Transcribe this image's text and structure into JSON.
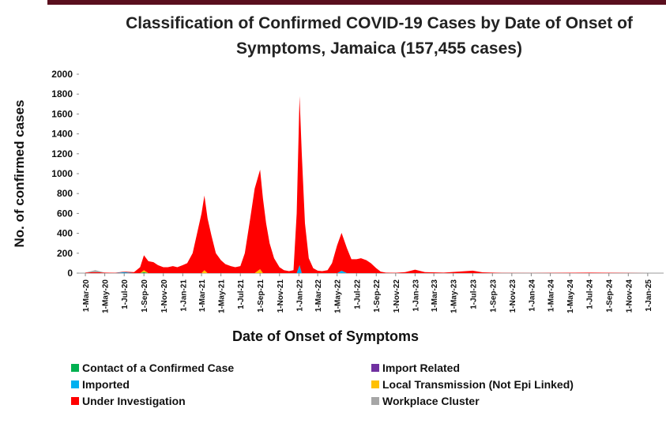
{
  "chart_data": {
    "type": "stacked-area",
    "title": "Classification of Confirmed COVID-19 Cases by Date of Onset of Symptoms, Jamaica (157,455 cases)",
    "xlabel": "Date of  Onset of Symptoms",
    "ylabel": "No. of confirmed cases",
    "x": [
      "2020-03-01",
      "2020-04-01",
      "2020-05-01",
      "2020-06-01",
      "2020-07-01",
      "2020-08-01",
      "2020-08-20",
      "2020-09-01",
      "2020-09-15",
      "2020-10-01",
      "2020-10-15",
      "2020-11-01",
      "2020-11-15",
      "2020-12-01",
      "2020-12-15",
      "2021-01-01",
      "2021-01-15",
      "2021-02-01",
      "2021-02-15",
      "2021-03-01",
      "2021-03-10",
      "2021-03-20",
      "2021-04-01",
      "2021-04-15",
      "2021-05-01",
      "2021-05-15",
      "2021-06-01",
      "2021-06-15",
      "2021-07-01",
      "2021-07-15",
      "2021-08-01",
      "2021-08-15",
      "2021-09-01",
      "2021-09-10",
      "2021-09-20",
      "2021-10-01",
      "2021-10-15",
      "2021-11-01",
      "2021-11-15",
      "2021-12-01",
      "2021-12-15",
      "2021-12-25",
      "2022-01-03",
      "2022-01-10",
      "2022-01-20",
      "2022-02-01",
      "2022-02-15",
      "2022-03-01",
      "2022-03-15",
      "2022-04-01",
      "2022-04-15",
      "2022-05-01",
      "2022-05-15",
      "2022-06-01",
      "2022-06-15",
      "2022-07-01",
      "2022-07-15",
      "2022-08-01",
      "2022-08-15",
      "2022-09-01",
      "2022-09-15",
      "2022-10-01",
      "2022-11-01",
      "2022-12-01",
      "2023-01-01",
      "2023-02-01",
      "2023-04-01",
      "2023-07-01",
      "2023-08-01",
      "2023-10-01",
      "2024-01-01",
      "2024-07-01",
      "2025-01-01"
    ],
    "xlim": [
      "2020-02-10",
      "2025-02-20"
    ],
    "xticks": [
      {
        "value": "2020-03-01",
        "label": "1-Mar-20"
      },
      {
        "value": "2020-05-01",
        "label": "1-May-20"
      },
      {
        "value": "2020-07-01",
        "label": "1-Jul-20"
      },
      {
        "value": "2020-09-01",
        "label": "1-Sep-20"
      },
      {
        "value": "2020-11-01",
        "label": "1-Nov-20"
      },
      {
        "value": "2021-01-01",
        "label": "1-Jan-21"
      },
      {
        "value": "2021-03-01",
        "label": "1-Mar-21"
      },
      {
        "value": "2021-05-01",
        "label": "1-May-21"
      },
      {
        "value": "2021-07-01",
        "label": "1-Jul-21"
      },
      {
        "value": "2021-09-01",
        "label": "1-Sep-21"
      },
      {
        "value": "2021-11-01",
        "label": "1-Nov-21"
      },
      {
        "value": "2022-01-01",
        "label": "1-Jan-22"
      },
      {
        "value": "2022-03-01",
        "label": "1-Mar-22"
      },
      {
        "value": "2022-05-01",
        "label": "1-May-22"
      },
      {
        "value": "2022-07-01",
        "label": "1-Jul-22"
      },
      {
        "value": "2022-09-01",
        "label": "1-Sep-22"
      },
      {
        "value": "2022-11-01",
        "label": "1-Nov-22"
      },
      {
        "value": "2023-01-01",
        "label": "1-Jan-23"
      },
      {
        "value": "2023-03-01",
        "label": "1-Mar-23"
      },
      {
        "value": "2023-05-01",
        "label": "1-May-23"
      },
      {
        "value": "2023-07-01",
        "label": "1-Jul-23"
      },
      {
        "value": "2023-09-01",
        "label": "1-Sep-23"
      },
      {
        "value": "2023-11-01",
        "label": "1-Nov-23"
      },
      {
        "value": "2024-01-01",
        "label": "1-Jan-24"
      },
      {
        "value": "2024-03-01",
        "label": "1-Mar-24"
      },
      {
        "value": "2024-05-01",
        "label": "1-May-24"
      },
      {
        "value": "2024-07-01",
        "label": "1-Jul-24"
      },
      {
        "value": "2024-09-01",
        "label": "1-Sep-24"
      },
      {
        "value": "2024-11-01",
        "label": "1-Nov-24"
      },
      {
        "value": "2025-01-01",
        "label": "1-Jan-25"
      }
    ],
    "ylim": [
      0,
      2000
    ],
    "yticks": [
      0,
      200,
      400,
      600,
      800,
      1000,
      1200,
      1400,
      1600,
      1800,
      2000
    ],
    "legend": "bottom",
    "series": [
      {
        "name": "Contact of a Confirmed Case",
        "color": "#00b050",
        "values": [
          0,
          0,
          0,
          0,
          0,
          0,
          0,
          10,
          0,
          0,
          0,
          0,
          0,
          0,
          0,
          0,
          0,
          0,
          0,
          0,
          0,
          0,
          0,
          0,
          0,
          0,
          0,
          0,
          0,
          0,
          0,
          0,
          0,
          0,
          0,
          0,
          0,
          0,
          0,
          0,
          0,
          0,
          0,
          0,
          0,
          0,
          0,
          0,
          0,
          0,
          0,
          0,
          0,
          0,
          0,
          0,
          0,
          0,
          0,
          0,
          0,
          0,
          0,
          0,
          0,
          0,
          0,
          0,
          0,
          0,
          0,
          0,
          0
        ]
      },
      {
        "name": "Import Related",
        "color": "#7030a0",
        "values": [
          0,
          0,
          0,
          0,
          0,
          0,
          0,
          0,
          0,
          0,
          0,
          0,
          0,
          0,
          0,
          0,
          0,
          0,
          0,
          0,
          0,
          0,
          0,
          0,
          0,
          0,
          0,
          0,
          0,
          0,
          0,
          0,
          0,
          0,
          0,
          0,
          0,
          0,
          0,
          0,
          0,
          0,
          0,
          0,
          0,
          0,
          0,
          0,
          0,
          0,
          0,
          0,
          0,
          0,
          0,
          0,
          0,
          0,
          0,
          0,
          0,
          0,
          0,
          0,
          0,
          0,
          0,
          0,
          0,
          0,
          0,
          0,
          0
        ]
      },
      {
        "name": "Imported",
        "color": "#00b0f0",
        "values": [
          0,
          0,
          0,
          0,
          10,
          0,
          0,
          0,
          0,
          0,
          0,
          0,
          0,
          0,
          0,
          0,
          0,
          0,
          0,
          0,
          0,
          0,
          0,
          0,
          0,
          0,
          0,
          0,
          0,
          0,
          0,
          0,
          0,
          0,
          0,
          0,
          0,
          0,
          0,
          0,
          0,
          0,
          80,
          0,
          0,
          0,
          0,
          0,
          0,
          0,
          0,
          0,
          25,
          0,
          0,
          0,
          0,
          0,
          0,
          0,
          0,
          0,
          0,
          0,
          0,
          0,
          0,
          0,
          0,
          0,
          0,
          0,
          0
        ]
      },
      {
        "name": "Local Transmission (Not Epi Linked)",
        "color": "#ffc000",
        "values": [
          0,
          0,
          0,
          0,
          0,
          0,
          0,
          20,
          0,
          0,
          0,
          0,
          0,
          0,
          0,
          0,
          0,
          0,
          0,
          0,
          30,
          0,
          0,
          0,
          0,
          0,
          0,
          0,
          0,
          0,
          0,
          0,
          40,
          0,
          0,
          0,
          0,
          0,
          0,
          0,
          0,
          0,
          0,
          0,
          0,
          0,
          0,
          0,
          0,
          0,
          0,
          0,
          0,
          0,
          0,
          0,
          0,
          0,
          0,
          0,
          0,
          0,
          0,
          0,
          0,
          0,
          0,
          0,
          0,
          0,
          0,
          0,
          0
        ]
      },
      {
        "name": "Under Investigation",
        "color": "#ff0000",
        "values": [
          5,
          10,
          5,
          3,
          5,
          10,
          60,
          150,
          120,
          110,
          80,
          60,
          60,
          70,
          60,
          80,
          100,
          200,
          400,
          600,
          750,
          550,
          380,
          200,
          130,
          90,
          70,
          60,
          70,
          200,
          550,
          850,
          1000,
          750,
          500,
          300,
          150,
          60,
          30,
          20,
          30,
          600,
          1700,
          1200,
          500,
          150,
          50,
          25,
          20,
          30,
          100,
          280,
          380,
          250,
          140,
          140,
          150,
          130,
          100,
          50,
          15,
          5,
          3,
          10,
          35,
          10,
          5,
          25,
          8,
          2,
          1,
          5,
          0
        ]
      },
      {
        "name": "Workplace Cluster",
        "color": "#a6a6a6",
        "values": [
          0,
          20,
          0,
          0,
          0,
          0,
          0,
          0,
          0,
          0,
          0,
          0,
          0,
          0,
          0,
          0,
          0,
          0,
          0,
          0,
          0,
          0,
          0,
          0,
          0,
          0,
          0,
          0,
          0,
          0,
          0,
          0,
          0,
          0,
          0,
          0,
          0,
          0,
          0,
          0,
          0,
          0,
          0,
          0,
          0,
          0,
          0,
          0,
          0,
          0,
          0,
          0,
          0,
          0,
          0,
          0,
          0,
          0,
          0,
          0,
          0,
          0,
          0,
          0,
          0,
          0,
          0,
          0,
          0,
          0,
          0,
          0,
          0
        ]
      }
    ]
  }
}
